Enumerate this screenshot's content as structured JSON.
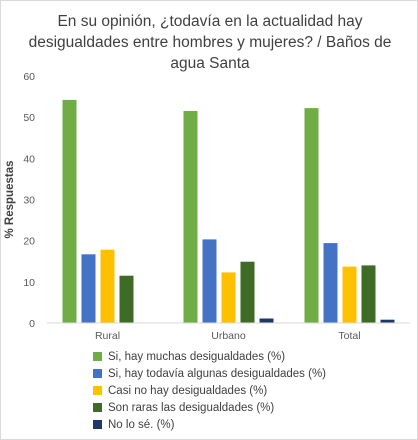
{
  "chart_data": {
    "type": "bar",
    "title": "En su opinión, ¿todavía en la actualidad hay desigualdades entre hombres y mujeres? / Baños de agua Santa",
    "xlabel": "",
    "ylabel": "% Respuestas",
    "ylim": [
      0,
      60
    ],
    "yticks": [
      "0",
      "10",
      "20",
      "30",
      "40",
      "50",
      "60"
    ],
    "grid": false,
    "legend_position": "bottom",
    "categories": [
      "Rural",
      "Urbano",
      "Total"
    ],
    "series": [
      {
        "name": "Si, hay muchas desigualdades (%)",
        "color": "#70ad47",
        "values": [
          54.2,
          51.5,
          52.2
        ]
      },
      {
        "name": "Si, hay todavía algunas desigualdades (%)",
        "color": "#4472c4",
        "values": [
          16.7,
          20.3,
          19.4
        ]
      },
      {
        "name": "Casi no hay desigualdades (%)",
        "color": "#ffc000",
        "values": [
          17.8,
          12.3,
          13.7
        ]
      },
      {
        "name": "Son raras las desigualdades (%)",
        "color": "#3e6b26",
        "values": [
          11.5,
          14.9,
          14.0
        ]
      },
      {
        "name": "No lo sé. (%)",
        "color": "#1f3864",
        "values": [
          0,
          1.1,
          0.8
        ]
      }
    ]
  }
}
